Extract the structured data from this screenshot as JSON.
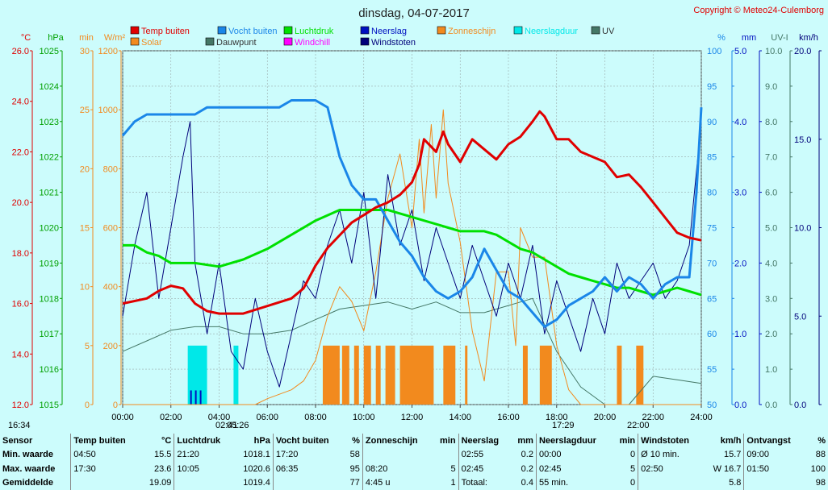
{
  "chart_data": {
    "type": "line",
    "title": "dinsdag, 04-07-2017",
    "copyright": "Copyright © Meteo24-Culemborg",
    "legend": [
      {
        "name": "Temp buiten",
        "color": "#e00000"
      },
      {
        "name": "Vocht buiten",
        "color": "#1a86e8"
      },
      {
        "name": "Luchtdruk",
        "color": "#00e000"
      },
      {
        "name": "Neerslag",
        "color": "#0010c0"
      },
      {
        "name": "Zonneschijn",
        "color": "#f28a1e"
      },
      {
        "name": "Neerslagduur",
        "color": "#00e8e8"
      },
      {
        "name": "UV",
        "color": "#447766"
      },
      {
        "name": "Solar",
        "color": "#f28a1e"
      },
      {
        "name": "Dauwpunt",
        "color": "#447766"
      },
      {
        "name": "Windchill",
        "color": "#ff00ff"
      },
      {
        "name": "Windstoten",
        "color": "#00007a"
      }
    ],
    "axes_left": [
      {
        "unit": "°C",
        "ticks": [
          "26.0",
          "24.0",
          "22.0",
          "20.0",
          "18.0",
          "16.0",
          "14.0",
          "12.0"
        ]
      },
      {
        "unit": "hPa",
        "ticks": [
          "1025",
          "1024",
          "1023",
          "1022",
          "1021",
          "1020",
          "1019",
          "1018",
          "1017",
          "1016",
          "1015"
        ]
      },
      {
        "unit": "min",
        "ticks": [
          "30",
          "25",
          "20",
          "15",
          "10",
          "5",
          "0"
        ]
      },
      {
        "unit": "W/m²",
        "ticks": [
          "1200",
          "1000",
          "800",
          "600",
          "400",
          "200",
          "0"
        ]
      }
    ],
    "axes_right": [
      {
        "unit": "%",
        "ticks": [
          "100",
          "95",
          "90",
          "85",
          "80",
          "75",
          "70",
          "65",
          "60",
          "55",
          "50"
        ]
      },
      {
        "unit": "mm",
        "ticks": [
          "5.0",
          "4.0",
          "3.0",
          "2.0",
          "1.0",
          "0.0"
        ]
      },
      {
        "unit": "UV-I",
        "ticks": [
          "10.0",
          "9.0",
          "8.0",
          "7.0",
          "6.0",
          "5.0",
          "4.0",
          "3.0",
          "2.0",
          "1.0",
          "0.0"
        ]
      },
      {
        "unit": "km/h",
        "ticks": [
          "20.0",
          "15.0",
          "10.0",
          "5.0",
          "0.0"
        ]
      }
    ],
    "x_ticks": [
      "00:00",
      "02:00",
      "04:00",
      "06:00",
      "08:00",
      "10:00",
      "12:00",
      "14:00",
      "16:00",
      "18:00",
      "20:00",
      "22:00",
      "24:00"
    ],
    "x_range_hours": [
      0,
      24
    ],
    "grid": true,
    "astro_labels": [
      "16:34",
      "02:41",
      "05:26",
      "17:29",
      "22:00"
    ],
    "series": {
      "temp": {
        "unit": "°C",
        "range": [
          12,
          26
        ],
        "t": [
          0,
          1,
          1.5,
          2,
          2.5,
          3,
          3.5,
          4,
          5,
          6,
          7,
          7.5,
          8,
          8.5,
          9,
          9.5,
          10,
          10.5,
          11,
          11.5,
          12,
          12.3,
          12.5,
          13,
          13.3,
          13.5,
          14,
          14.5,
          15,
          15.5,
          16,
          16.5,
          17,
          17.3,
          17.5,
          18,
          18.5,
          19,
          20,
          20.5,
          21,
          21.5,
          22,
          22.5,
          23,
          23.5,
          24
        ],
        "v": [
          16.0,
          16.2,
          16.5,
          16.7,
          16.6,
          16.0,
          15.7,
          15.6,
          15.6,
          15.9,
          16.2,
          16.6,
          17.5,
          18.2,
          18.7,
          19.2,
          19.5,
          19.8,
          20.0,
          20.3,
          20.8,
          21.5,
          22.5,
          22.0,
          22.8,
          22.3,
          21.6,
          22.5,
          22.1,
          21.7,
          22.3,
          22.6,
          23.2,
          23.6,
          23.4,
          22.5,
          22.5,
          22.0,
          21.6,
          21.0,
          21.1,
          20.6,
          20.0,
          19.4,
          18.8,
          18.6,
          18.5
        ]
      },
      "humidity": {
        "unit": "%",
        "range": [
          50,
          100
        ],
        "t": [
          0,
          0.5,
          1,
          1.5,
          2,
          2.5,
          3,
          3.5,
          4,
          5,
          6,
          6.5,
          7,
          7.5,
          8,
          8.5,
          9,
          9.5,
          10,
          10.5,
          11,
          11.5,
          12,
          12.5,
          13,
          13.5,
          14,
          14.5,
          15,
          15.5,
          16,
          16.5,
          17,
          17.5,
          18,
          18.5,
          19,
          19.5,
          20,
          20.5,
          21,
          21.5,
          22,
          22.5,
          23,
          23.5,
          23.8,
          24
        ],
        "v": [
          88,
          90,
          91,
          91,
          91,
          91,
          91,
          92,
          92,
          92,
          92,
          92,
          93,
          93,
          93,
          92,
          85,
          81,
          79,
          79,
          76,
          73,
          71,
          68,
          66,
          65,
          66,
          68,
          72,
          69,
          66,
          65,
          63,
          61,
          62,
          64,
          65,
          66,
          68,
          66,
          68,
          67,
          65,
          67,
          68,
          68,
          80,
          92
        ]
      },
      "pressure": {
        "unit": "hPa",
        "range": [
          1015,
          1025
        ],
        "t": [
          0,
          0.5,
          1,
          1.5,
          2,
          3,
          4,
          5,
          6,
          7,
          8,
          9,
          9.5,
          10,
          10.5,
          11,
          11.5,
          12,
          12.5,
          13,
          13.5,
          14,
          14.5,
          15,
          15.5,
          16,
          16.5,
          17,
          17.5,
          18,
          18.5,
          19,
          19.5,
          20,
          20.5,
          21,
          21.5,
          22,
          22.5,
          23,
          23.5,
          24
        ],
        "v": [
          1019.5,
          1019.5,
          1019.3,
          1019.2,
          1019.0,
          1019.0,
          1018.9,
          1019.1,
          1019.4,
          1019.8,
          1020.2,
          1020.5,
          1020.5,
          1020.5,
          1020.5,
          1020.5,
          1020.4,
          1020.3,
          1020.2,
          1020.1,
          1020.0,
          1019.9,
          1019.9,
          1019.9,
          1019.8,
          1019.6,
          1019.4,
          1019.3,
          1019.1,
          1018.9,
          1018.7,
          1018.6,
          1018.5,
          1018.4,
          1018.3,
          1018.3,
          1018.2,
          1018.1,
          1018.2,
          1018.3,
          1018.2,
          1018.1
        ]
      },
      "uv": {
        "unit": "UV-I",
        "range": [
          0,
          10
        ],
        "t": [
          0,
          1,
          2,
          3,
          4,
          5,
          6,
          7,
          8,
          9,
          10,
          11,
          12,
          13,
          14,
          15,
          16,
          17,
          18,
          19,
          20,
          21,
          22,
          23,
          24
        ],
        "v": [
          1.5,
          1.8,
          2.1,
          2.2,
          2.2,
          2.0,
          2.0,
          2.1,
          2.4,
          2.7,
          2.8,
          2.9,
          2.7,
          2.9,
          2.6,
          2.6,
          2.8,
          3.0,
          1.5,
          0.5,
          0,
          0,
          0.8,
          0.7,
          0.6
        ]
      },
      "solar": {
        "unit": "W/m²",
        "range": [
          0,
          1200
        ],
        "t": [
          0,
          5.5,
          6,
          7,
          7.5,
          8,
          8.5,
          9,
          9.5,
          10,
          10.5,
          11,
          11.5,
          12,
          12.3,
          12.5,
          12.8,
          13,
          13.3,
          13.5,
          14,
          14.5,
          15,
          15.5,
          16,
          16.3,
          16.5,
          17,
          17.5,
          18,
          18.5,
          19,
          20,
          21,
          22,
          22.5,
          24
        ],
        "v": [
          0,
          0,
          20,
          50,
          80,
          150,
          300,
          400,
          350,
          250,
          450,
          700,
          850,
          600,
          900,
          650,
          950,
          700,
          1000,
          750,
          550,
          250,
          80,
          450,
          450,
          200,
          600,
          500,
          500,
          200,
          50,
          0,
          0,
          0,
          0,
          0,
          0
        ]
      },
      "wind": {
        "unit": "km/h",
        "range": [
          0,
          20
        ],
        "t": [
          0,
          0.5,
          1,
          1.5,
          2,
          2.5,
          2.8,
          3,
          3.5,
          4,
          4.5,
          5,
          5.5,
          6,
          6.5,
          7,
          7.5,
          8,
          8.5,
          9,
          9.5,
          10,
          10.5,
          11,
          11.5,
          12,
          12.5,
          13,
          13.5,
          14,
          14.5,
          15,
          15.5,
          16,
          16.5,
          17,
          17.5,
          18,
          18.5,
          19,
          19.5,
          20,
          20.5,
          21,
          21.5,
          22,
          22.5,
          23,
          23.5,
          24
        ],
        "v": [
          5,
          9,
          12,
          6,
          10,
          14,
          16,
          8,
          4,
          8,
          3,
          2,
          6,
          3,
          1,
          4,
          7,
          6,
          9,
          11,
          8,
          12,
          6,
          13,
          9,
          11,
          7,
          10,
          8,
          6,
          9,
          7,
          5,
          8,
          6,
          9,
          4,
          7,
          5,
          3,
          6,
          4,
          8,
          6,
          7,
          8,
          6,
          7,
          9,
          16
        ]
      },
      "sunshine_hours": [
        [
          8.3,
          9.0
        ],
        [
          9.1,
          9.4
        ],
        [
          9.6,
          9.8
        ],
        [
          10.0,
          10.3
        ],
        [
          10.5,
          10.7
        ],
        [
          10.9,
          11.3
        ],
        [
          11.5,
          12.9
        ],
        [
          13.3,
          13.8
        ],
        [
          14.2,
          14.3
        ],
        [
          16.6,
          16.8
        ],
        [
          17.3,
          17.8
        ],
        [
          20.5,
          20.7
        ],
        [
          21.3,
          21.6
        ]
      ],
      "rain_duration_hours": [
        [
          2.7,
          3.5
        ],
        [
          4.6,
          4.8
        ]
      ],
      "rain_hours": [
        2.8,
        3.0,
        3.2
      ]
    }
  },
  "stats": {
    "columns": [
      {
        "title": "Sensor",
        "unit": ""
      },
      {
        "title": "Temp buiten",
        "unit": "°C"
      },
      {
        "title": "Luchtdruk",
        "unit": "hPa"
      },
      {
        "title": "Vocht buiten",
        "unit": "%"
      },
      {
        "title": "Zonneschijn",
        "unit": "min"
      },
      {
        "title": "Neerslag",
        "unit": "mm"
      },
      {
        "title": "Neerslagduur",
        "unit": "min"
      },
      {
        "title": "Windstoten",
        "unit": "km/h"
      },
      {
        "title": "Ontvangst",
        "unit": "%"
      }
    ],
    "rows": [
      {
        "label": "Min. waarde",
        "cells": [
          [
            "04:50",
            "15.5"
          ],
          [
            "21:20",
            "1018.1"
          ],
          [
            "17:20",
            "58"
          ],
          [
            "",
            ""
          ],
          [
            "02:55",
            "0.2"
          ],
          [
            "00:00",
            "0"
          ],
          [
            "Ø 10 min.",
            "15.7"
          ],
          [
            "09:00",
            "88"
          ]
        ]
      },
      {
        "label": "Max. waarde",
        "cells": [
          [
            "17:30",
            "23.6"
          ],
          [
            "10:05",
            "1020.6"
          ],
          [
            "06:35",
            "95"
          ],
          [
            "08:20",
            "5"
          ],
          [
            "02:45",
            "0.2"
          ],
          [
            "02:45",
            "5"
          ],
          [
            "02:50",
            "W 16.7"
          ],
          [
            "01:50",
            "100"
          ]
        ]
      },
      {
        "label": "Gemiddelde",
        "cells": [
          [
            "",
            "19.09"
          ],
          [
            "",
            "1019.4"
          ],
          [
            "",
            "77"
          ],
          [
            "4:45 u",
            "1"
          ],
          [
            "Totaal:",
            "0.4"
          ],
          [
            "55 min.",
            "0"
          ],
          [
            "",
            "5.8"
          ],
          [
            "",
            "98"
          ]
        ]
      }
    ]
  }
}
